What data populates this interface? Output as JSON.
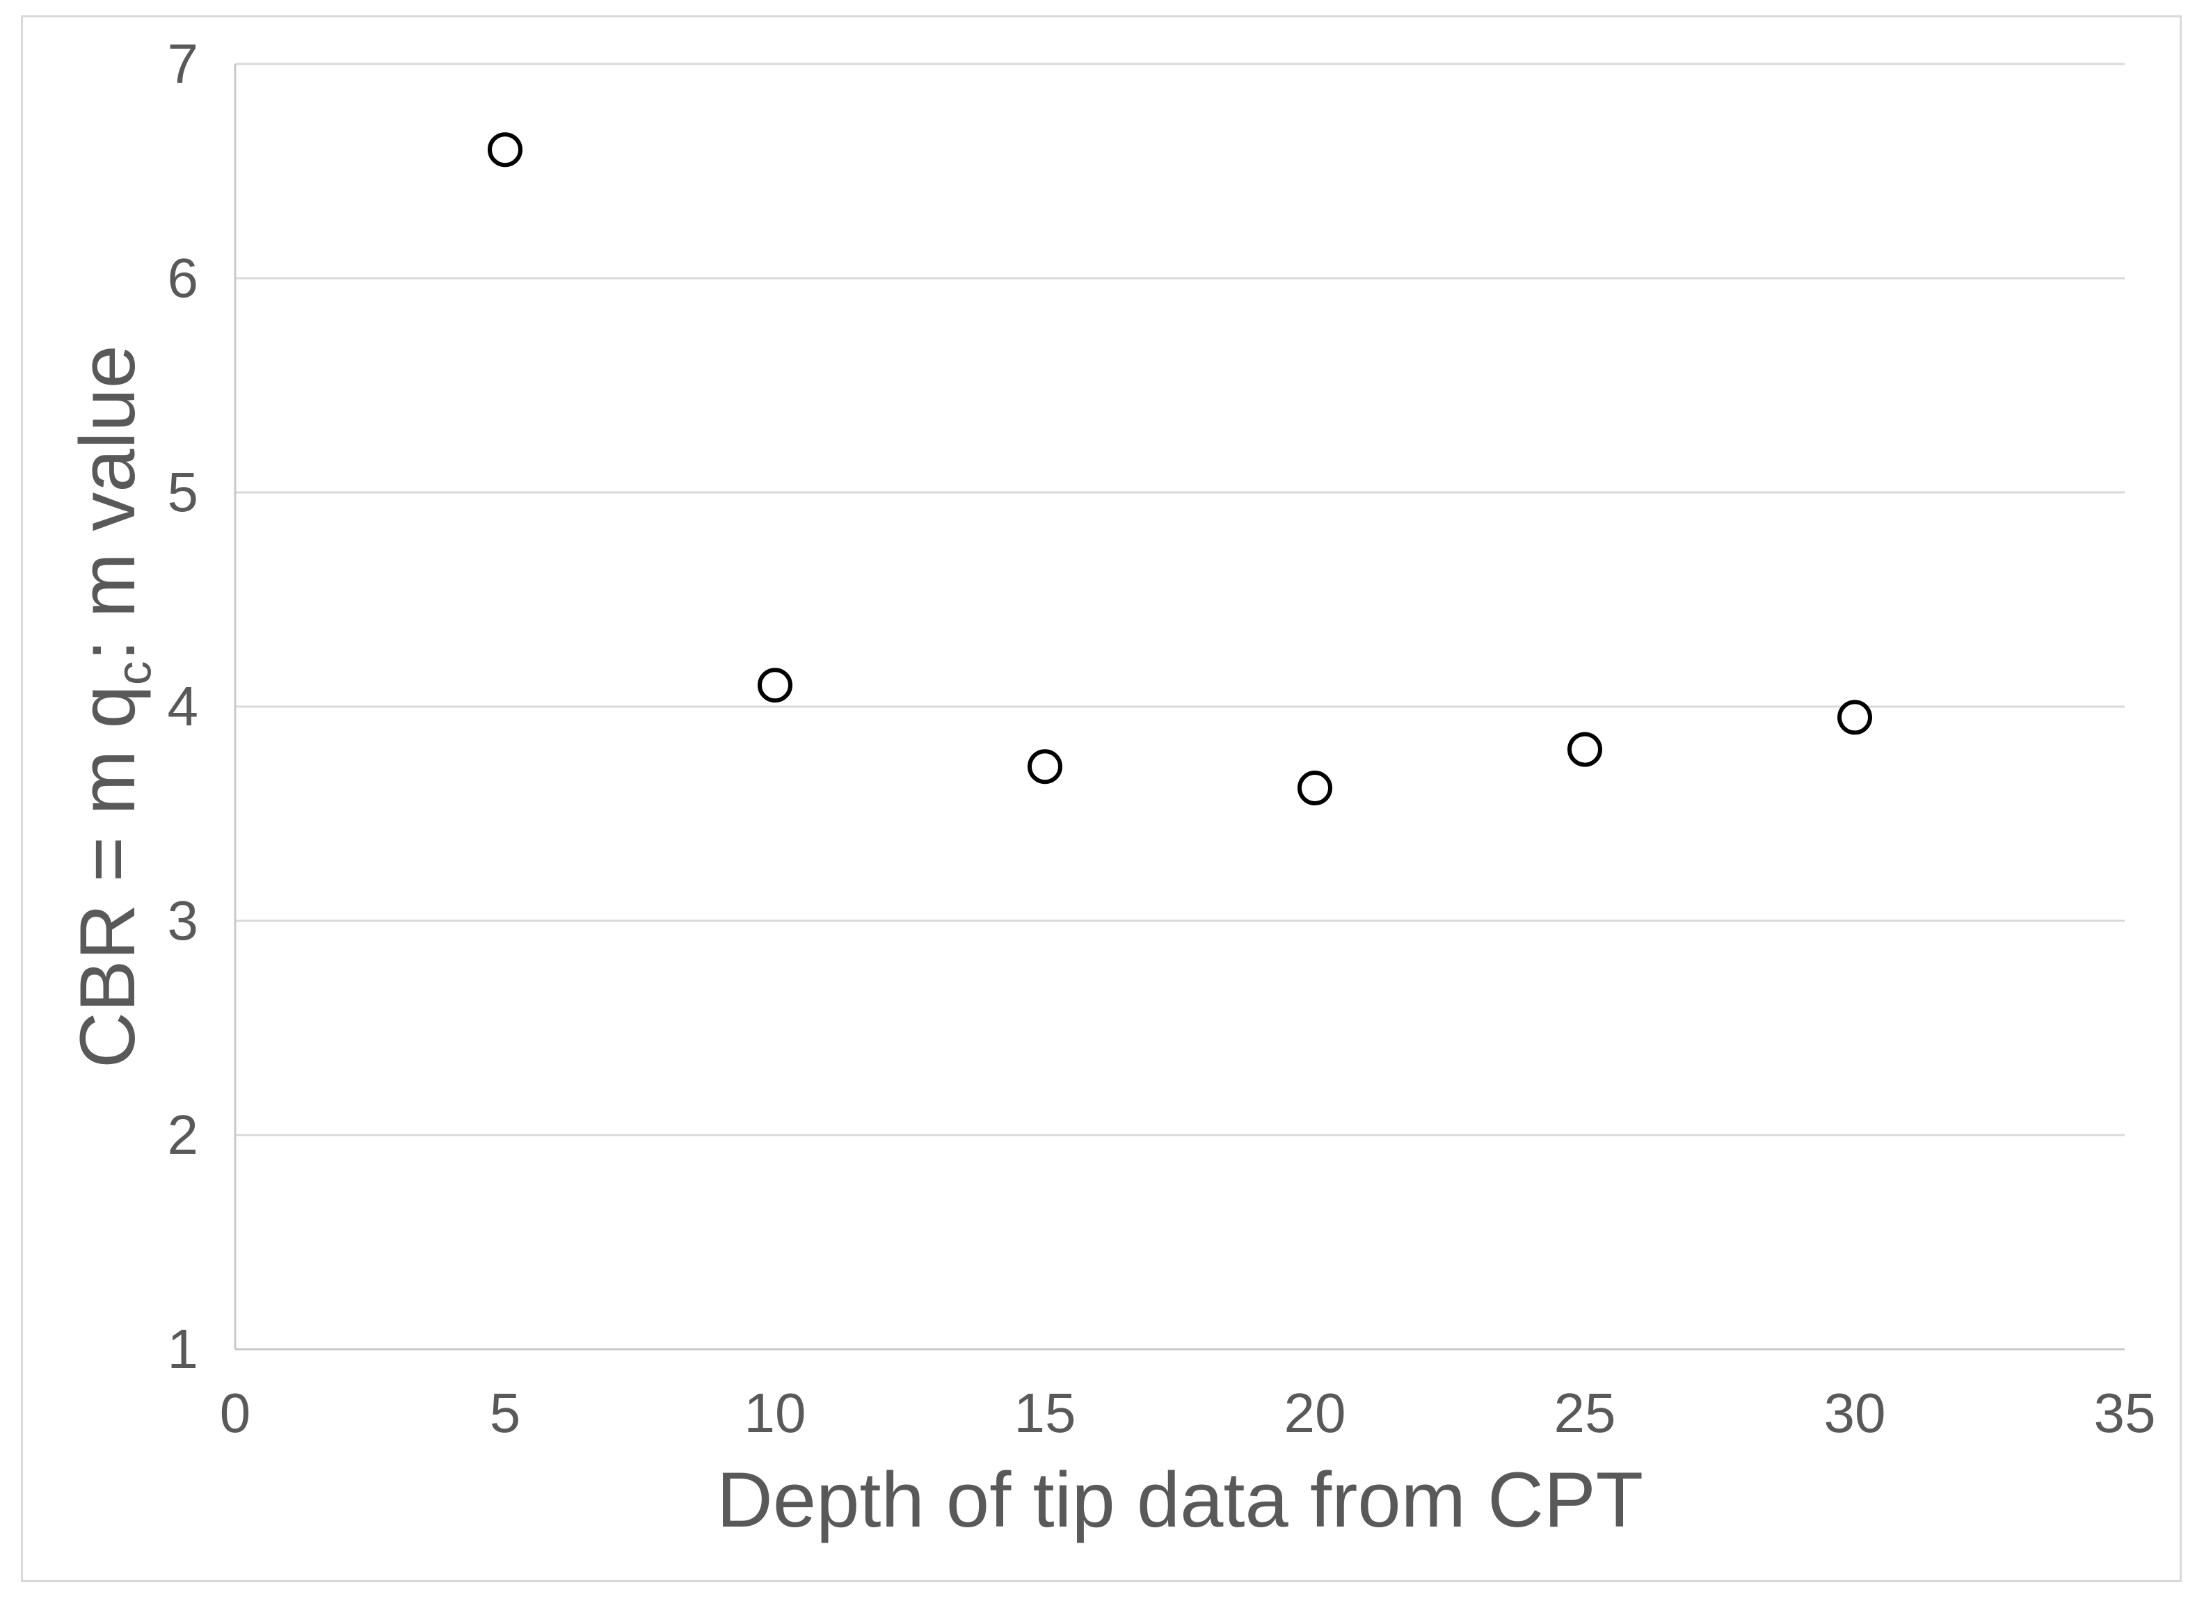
{
  "chart_data": {
    "type": "scatter",
    "title": "",
    "xlabel": "Depth of tip data from CPT",
    "ylabel": {
      "prefix": "CBR = m q",
      "sub": "c",
      "suffix": ": m value"
    },
    "xlim": [
      0,
      35
    ],
    "ylim": [
      1,
      7
    ],
    "xticks": [
      0,
      5,
      10,
      15,
      20,
      25,
      30,
      35
    ],
    "yticks": [
      1,
      2,
      3,
      4,
      5,
      6,
      7
    ],
    "grid": "horizontal",
    "legend": "none",
    "series": [
      {
        "marker": "open-circle",
        "x": [
          5,
          10,
          15,
          20,
          25,
          30
        ],
        "y": [
          6.6,
          4.1,
          3.72,
          3.62,
          3.8,
          3.95
        ]
      }
    ],
    "colors": {
      "marker_stroke": "#000000",
      "marker_fill": "#ffffff",
      "gridline": "#d9d9d9",
      "axis_line": "#c9c9c9",
      "tick_text": "#595959",
      "title_text": "#595959",
      "chart_border": "#d9d9d9",
      "background": "#ffffff"
    }
  }
}
